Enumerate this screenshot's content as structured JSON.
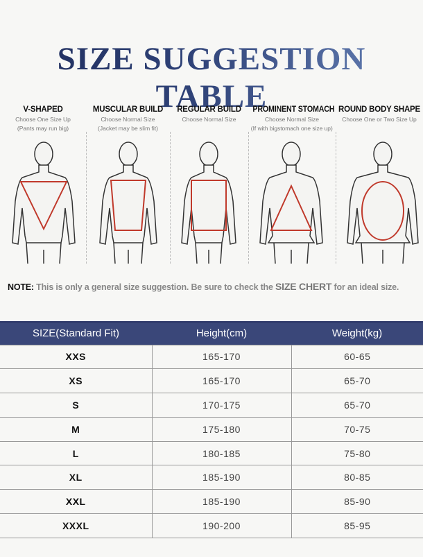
{
  "title": "SIZE SUGGESTION TABLE",
  "body_types": [
    {
      "name": "V-SHAPED",
      "line1": "Choose One Size Up",
      "line2": "(Pants may run big)"
    },
    {
      "name": "MUSCULAR BUILD",
      "line1": "Choose Normal Size",
      "line2": "(Jacket may be slim fit)"
    },
    {
      "name": "REGULAR BUILD",
      "line1": "Choose Normal Size",
      "line2": ""
    },
    {
      "name": "PROMINENT STOMACH",
      "line1": "Choose Normal Size",
      "line2": "(If with bigstomach one size up)"
    },
    {
      "name": "ROUND BODY SHAPE",
      "line1": "Choose One or Two Size Up",
      "line2": ""
    }
  ],
  "note": {
    "label": "NOTE:",
    "text1": "This is only a general size suggestion. Be sure to check the",
    "emph": "SIZE CHERT",
    "text2": "for an ideal size."
  },
  "table": {
    "headers": [
      "SIZE(Standard Fit)",
      "Height(cm)",
      "Weight(kg)"
    ],
    "rows": [
      [
        "XXS",
        "165-170",
        "60-65"
      ],
      [
        "XS",
        "165-170",
        "65-70"
      ],
      [
        "S",
        "170-175",
        "65-70"
      ],
      [
        "M",
        "175-180",
        "70-75"
      ],
      [
        "L",
        "180-185",
        "75-80"
      ],
      [
        "XL",
        "185-190",
        "80-85"
      ],
      [
        "XXL",
        "185-190",
        "85-90"
      ],
      [
        "XXXL",
        "190-200",
        "85-95"
      ]
    ]
  },
  "colors": {
    "header_bg": "#3a4779",
    "shape_red": "#c0392b",
    "title_dark": "#1e2b5a",
    "title_light": "#6883b8"
  }
}
